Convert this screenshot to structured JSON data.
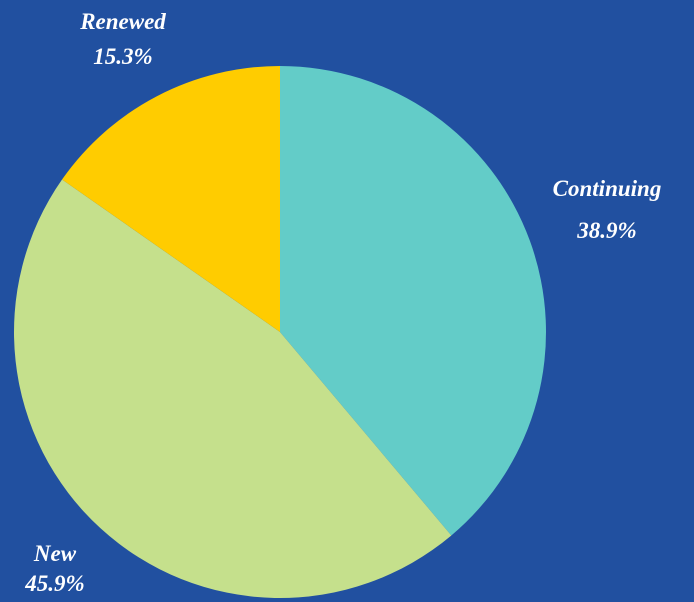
{
  "chart_data": {
    "type": "pie",
    "slices": [
      {
        "name": "Continuing",
        "value": 38.9,
        "label": "38.9%",
        "color": "#63ccc8"
      },
      {
        "name": "New",
        "value": 45.9,
        "label": "45.9%",
        "color": "#c5e08c"
      },
      {
        "name": "Renewed",
        "value": 15.3,
        "label": "15.3%",
        "color": "#ffcc00"
      }
    ],
    "start_angle": "12 o'clock",
    "direction": "clockwise",
    "background_color": "#2150a0",
    "legend": "none"
  }
}
